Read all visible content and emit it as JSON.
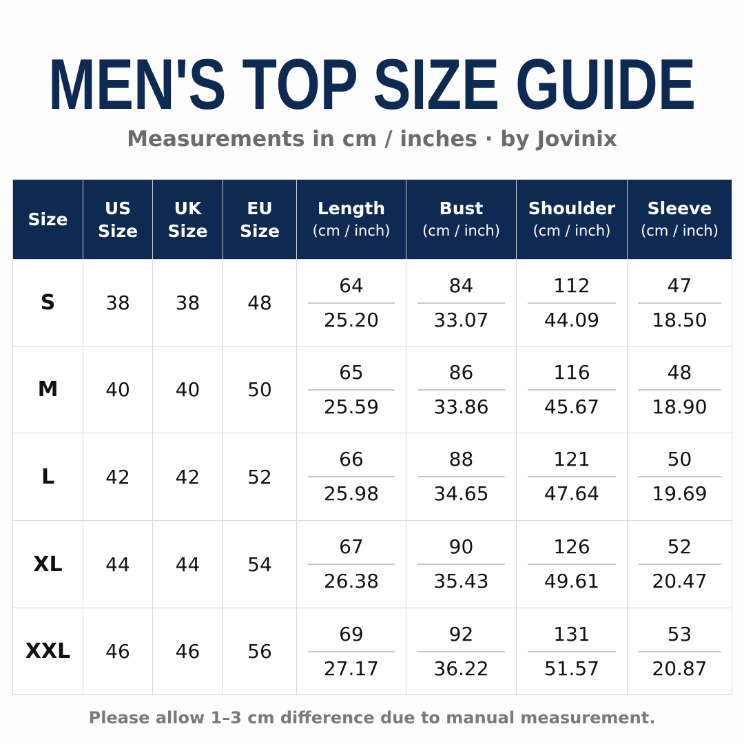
{
  "header": {
    "title": "MEN'S TOP SIZE GUIDE",
    "subtitle": "Measurements in cm / inches · by Jovinix"
  },
  "table": {
    "columns": [
      {
        "name": "Size"
      },
      {
        "name": "US Size"
      },
      {
        "name": "UK Size"
      },
      {
        "name": "EU Size"
      },
      {
        "name": "Length",
        "unit": "(cm / inch)"
      },
      {
        "name": "Bust",
        "unit": "(cm / inch)"
      },
      {
        "name": "Shoulder",
        "unit": "(cm / inch)"
      },
      {
        "name": "Sleeve",
        "unit": "(cm / inch)"
      }
    ],
    "rows": [
      [
        "S",
        "38",
        "38",
        "48",
        [
          "64",
          "25.20"
        ],
        [
          "84",
          "33.07"
        ],
        [
          "112",
          "44.09"
        ],
        [
          "47",
          "18.50"
        ]
      ],
      [
        "M",
        "40",
        "40",
        "50",
        [
          "65",
          "25.59"
        ],
        [
          "86",
          "33.86"
        ],
        [
          "116",
          "45.67"
        ],
        [
          "48",
          "18.90"
        ]
      ],
      [
        "L",
        "42",
        "42",
        "52",
        [
          "66",
          "25.98"
        ],
        [
          "88",
          "34.65"
        ],
        [
          "121",
          "47.64"
        ],
        [
          "50",
          "19.69"
        ]
      ],
      [
        "XL",
        "44",
        "44",
        "54",
        [
          "67",
          "26.38"
        ],
        [
          "90",
          "35.43"
        ],
        [
          "126",
          "49.61"
        ],
        [
          "52",
          "20.47"
        ]
      ],
      [
        "XXL",
        "46",
        "46",
        "56",
        [
          "69",
          "27.17"
        ],
        [
          "92",
          "36.22"
        ],
        [
          "131",
          "51.57"
        ],
        [
          "53",
          "20.87"
        ]
      ]
    ]
  },
  "footer": {
    "note": "Please allow 1–3 cm difference due to manual measurement."
  }
}
